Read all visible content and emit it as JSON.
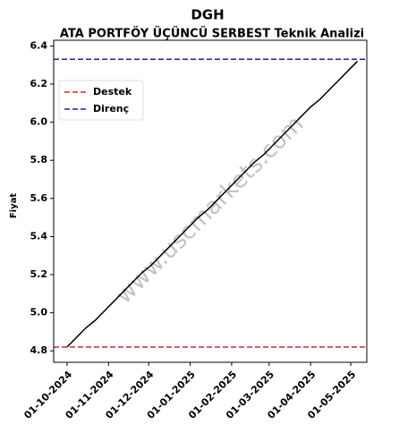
{
  "chart_data": {
    "type": "line",
    "title": "DGH",
    "subtitle": "ATA PORTFÖY ÜÇÜNCÜ SERBEST Teknik Analizi",
    "y_label": "Fiyat",
    "watermark": "www.uscmarkets.com",
    "x": [
      "2024-10-01",
      "2024-10-08",
      "2024-10-15",
      "2024-10-22",
      "2024-10-29",
      "2024-11-05",
      "2024-11-12",
      "2024-11-19",
      "2024-11-26",
      "2024-12-03",
      "2024-12-10",
      "2024-12-17",
      "2024-12-24",
      "2024-12-31",
      "2025-01-07",
      "2025-01-14",
      "2025-01-21",
      "2025-01-28",
      "2025-02-04",
      "2025-02-11",
      "2025-02-18",
      "2025-02-25",
      "2025-03-04",
      "2025-03-11",
      "2025-03-18",
      "2025-03-25",
      "2025-04-01",
      "2025-04-08",
      "2025-04-15",
      "2025-04-22",
      "2025-04-29",
      "2025-05-06"
    ],
    "series": [
      {
        "color": "#000000",
        "values": [
          4.82,
          4.87,
          4.92,
          4.96,
          5.01,
          5.06,
          5.11,
          5.16,
          5.21,
          5.25,
          5.3,
          5.35,
          5.4,
          5.45,
          5.5,
          5.54,
          5.59,
          5.64,
          5.69,
          5.74,
          5.79,
          5.83,
          5.88,
          5.93,
          5.98,
          6.03,
          6.08,
          6.12,
          6.17,
          6.22,
          6.27,
          6.32
        ]
      }
    ],
    "levels": [
      {
        "name": "Destek",
        "color": "#d62728",
        "value": 4.82
      },
      {
        "name": "Direnç",
        "color": "#1f1f9f",
        "value": 6.33
      }
    ],
    "legend": "upper left",
    "xlim": [
      "2024-09-21",
      "2025-05-13"
    ],
    "xticks": [
      {
        "value": "2024-10-01",
        "label": "01-10-2024"
      },
      {
        "value": "2024-11-01",
        "label": "01-11-2024"
      },
      {
        "value": "2024-12-01",
        "label": "01-12-2024"
      },
      {
        "value": "2025-01-01",
        "label": "01-01-2025"
      },
      {
        "value": "2025-02-01",
        "label": "01-02-2025"
      },
      {
        "value": "2025-03-01",
        "label": "01-03-2025"
      },
      {
        "value": "2025-04-01",
        "label": "01-04-2025"
      },
      {
        "value": "2025-05-01",
        "label": "01-05-2025"
      }
    ],
    "ylim": [
      4.74,
      6.43
    ],
    "yticks": [
      4.8,
      {
        "value": 5,
        "label": "5.0"
      },
      5.2,
      5.4,
      5.6,
      5.8,
      {
        "value": 6,
        "label": "6.0"
      },
      6.2,
      6.4
    ]
  }
}
